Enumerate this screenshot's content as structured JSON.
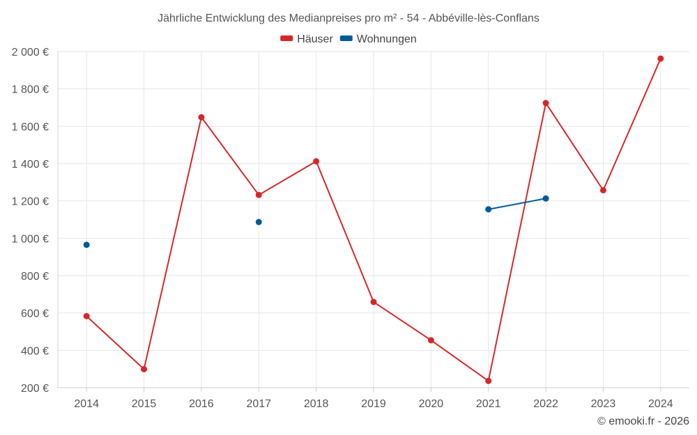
{
  "chart_data": {
    "type": "line",
    "title": "Jährliche Entwicklung des Medianpreises pro m² - 54 - Abbéville-lès-Conflans",
    "categories": [
      "2014",
      "2015",
      "2016",
      "2017",
      "2018",
      "2019",
      "2020",
      "2021",
      "2022",
      "2023",
      "2024"
    ],
    "series": [
      {
        "name": "Häuser",
        "color": "#d62728",
        "values": [
          583,
          299,
          1648,
          1232,
          1412,
          659,
          454,
          236,
          1724,
          1257,
          1962
        ]
      },
      {
        "name": "Wohnungen",
        "color": "#005b96",
        "values": [
          965,
          null,
          null,
          1087,
          null,
          null,
          null,
          1155,
          1213,
          null,
          null
        ]
      }
    ],
    "ylim": [
      200,
      2000
    ],
    "yticks": [
      200,
      400,
      600,
      800,
      1000,
      1200,
      1400,
      1600,
      1800,
      2000
    ],
    "ytick_labels": [
      "200 €",
      "400 €",
      "600 €",
      "800 €",
      "1 000 €",
      "1 200 €",
      "1 400 €",
      "1 600 €",
      "1 800 €",
      "2 000 €"
    ],
    "xlabel": "",
    "ylabel": "",
    "grid": true,
    "legend_position": "top-center"
  },
  "credit": "© emooki.fr - 2026"
}
